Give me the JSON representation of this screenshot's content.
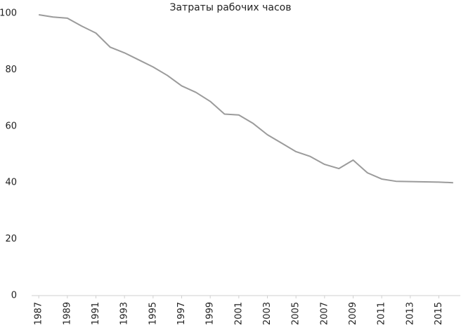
{
  "chart_data": {
    "type": "line",
    "title": "Затраты рабочих часов",
    "x": [
      1987,
      1988,
      1989,
      1990,
      1991,
      1992,
      1993,
      1994,
      1995,
      1996,
      1997,
      1998,
      1999,
      2000,
      2001,
      2002,
      2003,
      2004,
      2005,
      2006,
      2007,
      2008,
      2009,
      2010,
      2011,
      2012,
      2013,
      2014,
      2015,
      2016
    ],
    "series": [
      {
        "name": "Затраты рабочих часов",
        "color": "#9b9b9b",
        "values": [
          99.5,
          98.7,
          98.3,
          95.5,
          93,
          88,
          86,
          83.5,
          81,
          78,
          74.3,
          72,
          68.8,
          64.3,
          64,
          61,
          57,
          54,
          51,
          49.3,
          46.5,
          45,
          48,
          43.5,
          41.3,
          40.5,
          40.4,
          40.3,
          40.2,
          40
        ]
      }
    ],
    "xlim": [
      1986.5,
      2016.5
    ],
    "xticks": [
      1987,
      1989,
      1991,
      1993,
      1995,
      1997,
      1999,
      2001,
      2003,
      2005,
      2007,
      2009,
      2011,
      2013,
      2015
    ],
    "ylim": [
      0,
      100
    ],
    "yticks": [
      0,
      20,
      40,
      60,
      80,
      100
    ],
    "grid": false
  }
}
